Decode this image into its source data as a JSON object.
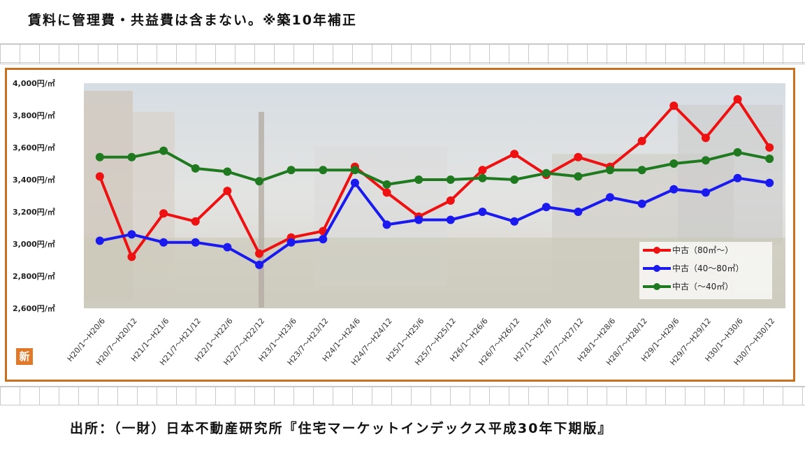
{
  "header": {
    "note": "賃料に管理費・共益費は含まない。※築10年補正"
  },
  "footer": {
    "source": "出所：（一財）日本不動産研究所『住宅マーケットインデックス平成30年下期版』"
  },
  "badge": {
    "label": "新"
  },
  "colors": {
    "frame": "#c8701e",
    "series_red": "#ee1111",
    "series_blue": "#1a1aee",
    "series_green": "#1f7a1f"
  },
  "chart_data": {
    "type": "line",
    "title": "",
    "xlabel": "",
    "ylabel": "",
    "ylim": [
      2600,
      4000
    ],
    "yticks": [
      {
        "value": 4000,
        "label": "4,000円/㎡"
      },
      {
        "value": 3800,
        "label": "3,800円/㎡"
      },
      {
        "value": 3600,
        "label": "3,600円/㎡"
      },
      {
        "value": 3400,
        "label": "3,400円/㎡"
      },
      {
        "value": 3200,
        "label": "3,200円/㎡"
      },
      {
        "value": 3000,
        "label": "3,000円/㎡"
      },
      {
        "value": 2800,
        "label": "2,800円/㎡"
      },
      {
        "value": 2600,
        "label": "2,600円/㎡"
      }
    ],
    "categories": [
      "H20/1～H20/6",
      "H20/7～H20/12",
      "H21/1～H21/6",
      "H21/7～H21/12",
      "H22/1～H22/6",
      "H22/7～H22/12",
      "H23/1～H23/6",
      "H23/7～H23/12",
      "H24/1～H24/6",
      "H24/7～H24/12",
      "H25/1～H25/6",
      "H25/7～H25/12",
      "H26/1～H26/6",
      "H26/7～H26/12",
      "H27/1～H27/6",
      "H27/7～H27/12",
      "H28/1～H28/6",
      "H28/7～H28/12",
      "H29/1～H29/6",
      "H29/7～H29/12",
      "H30/1～H30/6",
      "H30/7～H30/12"
    ],
    "series": [
      {
        "name": "中古（80㎡～）",
        "color": "#ee1111",
        "values": [
          3420,
          2920,
          3190,
          3140,
          3330,
          2940,
          3040,
          3080,
          3480,
          3320,
          3170,
          3270,
          3460,
          3560,
          3430,
          3540,
          3480,
          3640,
          3860,
          3660,
          3900,
          3600
        ]
      },
      {
        "name": "中古（40～80㎡）",
        "color": "#1a1aee",
        "values": [
          3020,
          3060,
          3010,
          3010,
          2980,
          2870,
          3010,
          3030,
          3380,
          3120,
          3150,
          3150,
          3200,
          3140,
          3230,
          3200,
          3290,
          3250,
          3340,
          3320,
          3410,
          3380
        ]
      },
      {
        "name": "中古（～40㎡）",
        "color": "#1f7a1f",
        "values": [
          3540,
          3540,
          3580,
          3470,
          3450,
          3390,
          3460,
          3460,
          3460,
          3370,
          3400,
          3400,
          3410,
          3400,
          3440,
          3420,
          3460,
          3460,
          3500,
          3520,
          3570,
          3530
        ]
      }
    ],
    "grid": false,
    "legend_position": "right"
  }
}
